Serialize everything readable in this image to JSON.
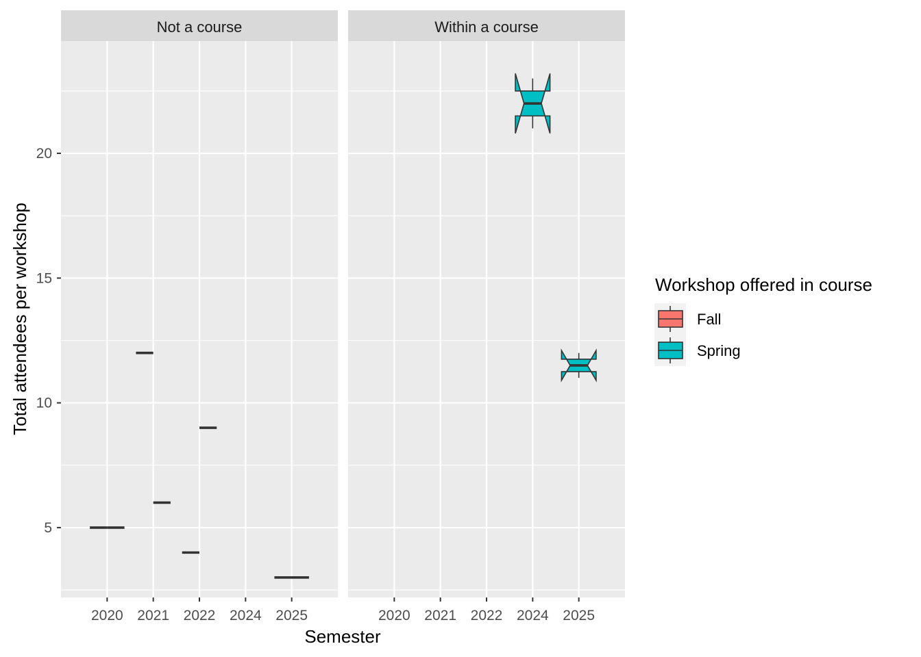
{
  "chart_data": {
    "type": "boxplot",
    "xlabel": "Semester",
    "ylabel": "Total attendees per workshop",
    "ylim": [
      2.2,
      24.5
    ],
    "yticks": [
      5,
      10,
      15,
      20
    ],
    "categories": [
      "2020",
      "2021",
      "2022",
      "2024",
      "2025"
    ],
    "legend": {
      "title": "Workshop offered in course",
      "position": "right",
      "entries": [
        {
          "name": "Fall",
          "color": "#F8766D"
        },
        {
          "name": "Spring",
          "color": "#00BFC4"
        }
      ]
    },
    "panels": [
      {
        "name": "Not a course",
        "boxes": [
          {
            "x": "2020",
            "group": "Fall",
            "min": 5,
            "q1": 5,
            "median": 5,
            "q3": 5,
            "max": 5
          },
          {
            "x": "2020",
            "group": "Spring",
            "min": 5,
            "q1": 5,
            "median": 5,
            "q3": 5,
            "max": 5
          },
          {
            "x": "2021",
            "group": "Fall",
            "min": 12,
            "q1": 12,
            "median": 12,
            "q3": 12,
            "max": 12
          },
          {
            "x": "2021",
            "group": "Spring",
            "min": 6,
            "q1": 6,
            "median": 6,
            "q3": 6,
            "max": 6
          },
          {
            "x": "2022",
            "group": "Fall",
            "min": 4,
            "q1": 4,
            "median": 4,
            "q3": 4,
            "max": 4
          },
          {
            "x": "2022",
            "group": "Spring",
            "min": 9,
            "q1": 9,
            "median": 9,
            "q3": 9,
            "max": 9
          },
          {
            "x": "2025",
            "group": "Spring",
            "min": 3,
            "q1": 3,
            "median": 3,
            "q3": 3,
            "max": 3
          }
        ]
      },
      {
        "name": "Within a course",
        "boxes": [
          {
            "x": "2024",
            "group": "Spring",
            "min": 21,
            "q1": 21.5,
            "median": 22,
            "q3": 22.5,
            "max": 23,
            "notch_low": 20.8,
            "notch_high": 23.2
          },
          {
            "x": "2025",
            "group": "Spring",
            "min": 11,
            "q1": 11.25,
            "median": 11.5,
            "q3": 11.75,
            "max": 12,
            "notch_low": 10.9,
            "notch_high": 12.1
          }
        ]
      }
    ],
    "grid": true
  }
}
